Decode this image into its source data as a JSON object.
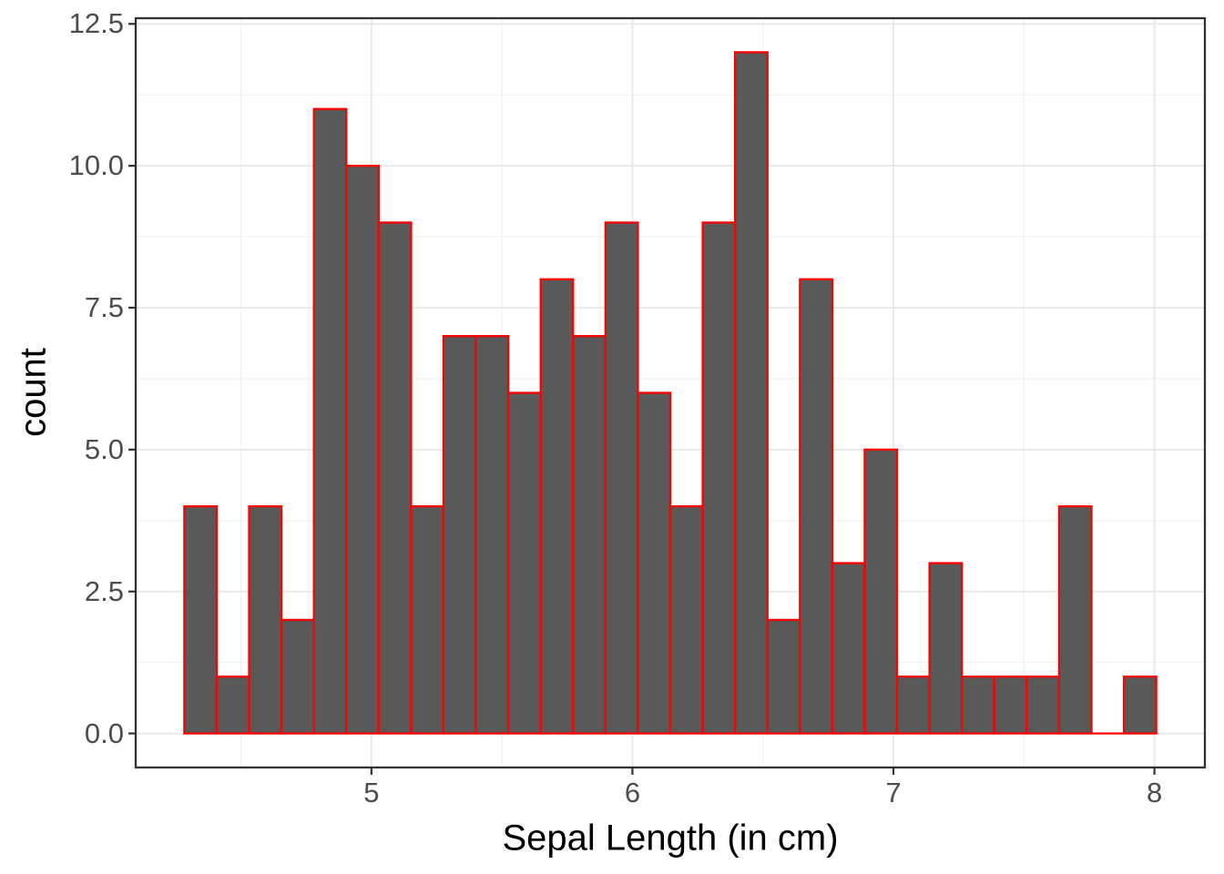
{
  "chart_data": {
    "type": "bar",
    "subtype": "histogram",
    "title": "",
    "xlabel": "Sepal Length (in cm)",
    "ylabel": "count",
    "bin_start": 4.282931,
    "bin_width": 0.1241379,
    "values": [
      4,
      1,
      4,
      2,
      11,
      10,
      9,
      4,
      7,
      7,
      6,
      8,
      7,
      9,
      6,
      4,
      9,
      12,
      2,
      8,
      3,
      5,
      1,
      3,
      1,
      1,
      1,
      4,
      0,
      1
    ],
    "x_ticks": [
      {
        "value": 5,
        "label": "5"
      },
      {
        "value": 6,
        "label": "6"
      },
      {
        "value": 7,
        "label": "7"
      },
      {
        "value": 8,
        "label": "8"
      }
    ],
    "y_ticks": [
      {
        "value": 0,
        "label": "0.0"
      },
      {
        "value": 2.5,
        "label": "2.5"
      },
      {
        "value": 5,
        "label": "5.0"
      },
      {
        "value": 7.5,
        "label": "7.5"
      },
      {
        "value": 10,
        "label": "10.0"
      },
      {
        "value": 12.5,
        "label": "12.5"
      }
    ],
    "x_minor_ticks": [
      4.5,
      5.5,
      6.5,
      7.5
    ],
    "y_minor_ticks": [
      1.25,
      3.75,
      6.25,
      8.75,
      11.25
    ],
    "xlim": [
      4.09672,
      8.19328
    ],
    "ylim": [
      -0.6,
      12.6
    ],
    "grid": true,
    "legend_position": "none",
    "colors": {
      "bar_fill": "#595959",
      "bar_stroke": "#fe0000",
      "panel_border": "#333333",
      "tick_mark": "#333333",
      "grid_major": "#e7e7e7",
      "grid_minor": "#f1f1f1",
      "axis_text": "#4d4d4d",
      "axis_title": "#000000",
      "background": "#ffffff"
    }
  }
}
